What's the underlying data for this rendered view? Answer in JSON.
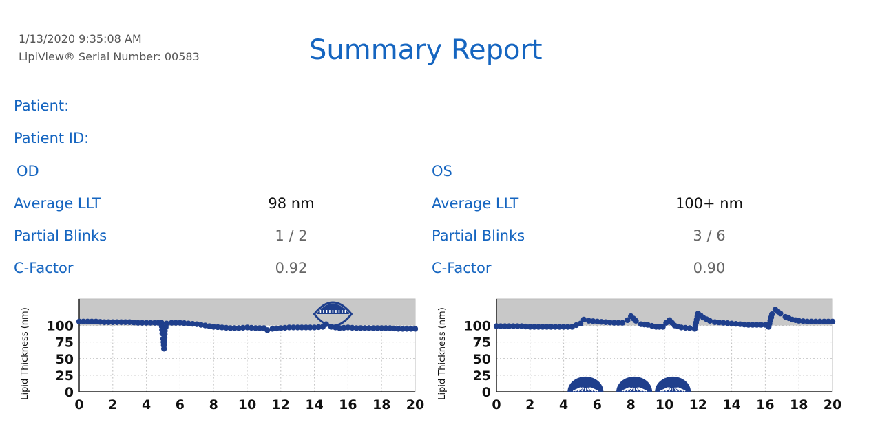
{
  "header": {
    "timestamp": "1/13/2020 9:35:08 AM",
    "serial": "LipiView® Serial Number: 00583",
    "title": "Summary Report"
  },
  "patient": {
    "name_label": "Patient:",
    "id_label": "Patient ID:"
  },
  "od": {
    "eye": "OD",
    "avg_llt_label": "Average LLT",
    "avg_llt": "98 nm",
    "partial_blinks_label": "Partial Blinks",
    "partial_blinks": "1 / 2",
    "cfactor_label": "C-Factor",
    "cfactor": "0.92"
  },
  "os": {
    "eye": "OS",
    "avg_llt_label": "Average LLT",
    "avg_llt": "100+ nm",
    "partial_blinks_label": "Partial Blinks",
    "partial_blinks": "3 / 6",
    "cfactor_label": "C-Factor",
    "cfactor": "0.90"
  },
  "chart_data": [
    {
      "type": "scatter",
      "eye": "OD",
      "ylabel": "Lipid Thickness (nm)",
      "xlim": [
        0,
        20
      ],
      "ylim": [
        0,
        140
      ],
      "xticks": [
        "0",
        "2",
        "4",
        "6",
        "8",
        "10",
        "12",
        "14",
        "16",
        "18",
        "20"
      ],
      "yticks": [
        "0",
        "25",
        "50",
        "75",
        "100"
      ],
      "shaded_range": [
        100,
        140
      ],
      "grid": true,
      "series_color": "#1f3f8c",
      "x": [
        0,
        0.5,
        1,
        1.5,
        2,
        2.5,
        3,
        3.5,
        4,
        4.5,
        4.9,
        4.95,
        5,
        5.05,
        5.1,
        5.2,
        5.5,
        6,
        6.5,
        7,
        7.5,
        8,
        8.5,
        9,
        9.5,
        10,
        10.5,
        11,
        11.2,
        11.5,
        12,
        12.5,
        13,
        13.5,
        14,
        14.5,
        14.7,
        15,
        15.5,
        16,
        16.5,
        17,
        17.5,
        18,
        18.5,
        19,
        19.5,
        20
      ],
      "y": [
        106,
        106,
        106,
        105,
        105,
        105,
        105,
        104,
        104,
        104,
        104,
        88,
        80,
        65,
        92,
        103,
        104,
        104,
        103,
        102,
        100,
        98,
        97,
        96,
        96,
        97,
        96,
        96,
        93,
        95,
        96,
        97,
        97,
        97,
        97,
        98,
        102,
        98,
        96,
        97,
        96,
        96,
        96,
        96,
        96,
        95,
        95,
        95
      ],
      "blinks": [
        {
          "x": 15.1,
          "type": "full-open"
        }
      ]
    },
    {
      "type": "scatter",
      "eye": "OS",
      "ylabel": "Lipid Thickness (nm)",
      "xlim": [
        0,
        20
      ],
      "ylim": [
        0,
        140
      ],
      "xticks": [
        "0",
        "2",
        "4",
        "6",
        "8",
        "10",
        "12",
        "14",
        "16",
        "18",
        "20"
      ],
      "yticks": [
        "0",
        "25",
        "50",
        "75",
        "100"
      ],
      "shaded_range": [
        100,
        140
      ],
      "grid": true,
      "series_color": "#1f3f8c",
      "x": [
        0,
        0.5,
        1,
        1.5,
        2,
        2.5,
        3,
        3.5,
        4,
        4.5,
        5,
        5.2,
        5.5,
        6,
        6.5,
        7,
        7.5,
        7.8,
        8,
        8.3,
        8.6,
        9,
        9.5,
        9.9,
        10.1,
        10.3,
        10.6,
        11,
        11.5,
        11.8,
        12,
        12.3,
        12.7,
        13,
        13.5,
        14,
        14.5,
        15,
        15.5,
        16,
        16.2,
        16.4,
        16.6,
        16.9,
        17.2,
        17.6,
        18,
        18.5,
        19,
        19.5,
        20
      ],
      "y": [
        99,
        99,
        99,
        99,
        98,
        98,
        98,
        98,
        98,
        98,
        103,
        109,
        107,
        106,
        105,
        104,
        104,
        108,
        114,
        107,
        102,
        101,
        98,
        98,
        104,
        108,
        100,
        97,
        96,
        95,
        118,
        112,
        107,
        105,
        104,
        103,
        102,
        101,
        101,
        101,
        98,
        117,
        124,
        118,
        113,
        109,
        107,
        106,
        106,
        106,
        106
      ],
      "blinks": [
        {
          "x": 5.3,
          "type": "partial"
        },
        {
          "x": 8.2,
          "type": "partial"
        },
        {
          "x": 10.5,
          "type": "partial"
        }
      ]
    }
  ]
}
